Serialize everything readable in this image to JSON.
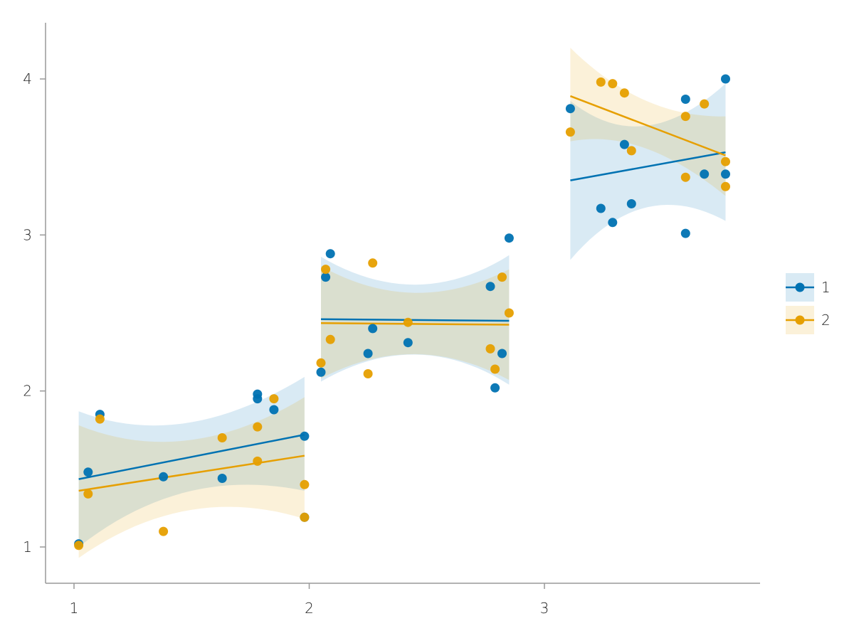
{
  "chart_data": {
    "type": "scatter",
    "title": "",
    "xlabel": "",
    "ylabel": "",
    "xlim": [
      0.88,
      3.92
    ],
    "ylim": [
      0.78,
      4.36
    ],
    "x_ticks": [
      1,
      2,
      3
    ],
    "y_ticks": [
      1,
      2,
      3,
      4
    ],
    "x_tick_labels": [
      "1",
      "2",
      "3"
    ],
    "y_tick_labels": [
      "1",
      "2",
      "3",
      "4"
    ],
    "grid": false,
    "legend_position": "right",
    "series": [
      {
        "name": "1",
        "color": "#0072B2",
        "points": [
          [
            1.02,
            1.02
          ],
          [
            1.06,
            1.48
          ],
          [
            1.11,
            1.85
          ],
          [
            1.38,
            1.45
          ],
          [
            1.63,
            1.44
          ],
          [
            1.78,
            1.98
          ],
          [
            1.78,
            1.95
          ],
          [
            1.85,
            1.88
          ],
          [
            1.98,
            1.71
          ],
          [
            1.98,
            1.19
          ],
          [
            2.05,
            2.12
          ],
          [
            2.07,
            2.73
          ],
          [
            2.09,
            2.88
          ],
          [
            2.25,
            2.24
          ],
          [
            2.27,
            2.4
          ],
          [
            2.42,
            2.31
          ],
          [
            2.77,
            2.67
          ],
          [
            2.79,
            2.02
          ],
          [
            2.82,
            2.24
          ],
          [
            2.85,
            2.98
          ],
          [
            3.11,
            3.81
          ],
          [
            3.24,
            3.17
          ],
          [
            3.29,
            3.08
          ],
          [
            3.34,
            3.58
          ],
          [
            3.37,
            3.2
          ],
          [
            3.6,
            3.87
          ],
          [
            3.6,
            3.01
          ],
          [
            3.68,
            3.39
          ],
          [
            3.77,
            4.0
          ],
          [
            3.77,
            3.39
          ]
        ],
        "regression": {
          "x": [
            1.02,
            1.98
          ],
          "y": [
            1.435,
            1.72
          ]
        },
        "band": [
          {
            "x": [
              1.02,
              1.98
            ],
            "lower": [
              1.0,
              1.36
            ],
            "upper": [
              1.87,
              2.09
            ]
          },
          {
            "x": [
              2.05,
              2.85
            ],
            "lower": [
              2.06,
              2.04
            ],
            "upper": [
              2.86,
              2.87
            ]
          },
          {
            "x": [
              3.11,
              3.77
            ],
            "lower": [
              2.84,
              3.09
            ],
            "upper": [
              3.86,
              3.97
            ]
          }
        ],
        "segments": [
          {
            "x": [
              1.02,
              1.98
            ],
            "y": [
              1.435,
              1.72
            ]
          },
          {
            "x": [
              2.05,
              2.85
            ],
            "y": [
              2.46,
              2.45
            ]
          },
          {
            "x": [
              3.11,
              3.77
            ],
            "y": [
              3.35,
              3.53
            ]
          }
        ]
      },
      {
        "name": "2",
        "color": "#E69F00",
        "points": [
          [
            1.02,
            1.01
          ],
          [
            1.06,
            1.34
          ],
          [
            1.11,
            1.82
          ],
          [
            1.38,
            1.1
          ],
          [
            1.63,
            1.7
          ],
          [
            1.78,
            1.77
          ],
          [
            1.78,
            1.55
          ],
          [
            1.85,
            1.95
          ],
          [
            1.98,
            1.4
          ],
          [
            1.98,
            1.19
          ],
          [
            2.05,
            2.18
          ],
          [
            2.07,
            2.78
          ],
          [
            2.09,
            2.33
          ],
          [
            2.25,
            2.11
          ],
          [
            2.27,
            2.82
          ],
          [
            2.42,
            2.44
          ],
          [
            2.77,
            2.27
          ],
          [
            2.79,
            2.14
          ],
          [
            2.82,
            2.73
          ],
          [
            2.85,
            2.5
          ],
          [
            3.11,
            3.66
          ],
          [
            3.24,
            3.98
          ],
          [
            3.29,
            3.97
          ],
          [
            3.34,
            3.91
          ],
          [
            3.37,
            3.54
          ],
          [
            3.6,
            3.76
          ],
          [
            3.6,
            3.37
          ],
          [
            3.68,
            3.84
          ],
          [
            3.77,
            3.47
          ],
          [
            3.77,
            3.31
          ]
        ],
        "band": [
          {
            "x": [
              1.02,
              1.98
            ],
            "lower": [
              0.93,
              1.18
            ],
            "upper": [
              1.78,
              1.96
            ]
          },
          {
            "x": [
              2.05,
              2.85
            ],
            "lower": [
              2.08,
              2.07
            ],
            "upper": [
              2.8,
              2.78
            ]
          },
          {
            "x": [
              3.11,
              3.77
            ],
            "lower": [
              3.6,
              3.25
            ],
            "upper": [
              4.2,
              3.76
            ]
          }
        ],
        "segments": [
          {
            "x": [
              1.02,
              1.98
            ],
            "y": [
              1.36,
              1.585
            ]
          },
          {
            "x": [
              2.05,
              2.85
            ],
            "y": [
              2.435,
              2.425
            ]
          },
          {
            "x": [
              3.11,
              3.77
            ],
            "y": [
              3.89,
              3.51
            ]
          }
        ]
      }
    ]
  }
}
